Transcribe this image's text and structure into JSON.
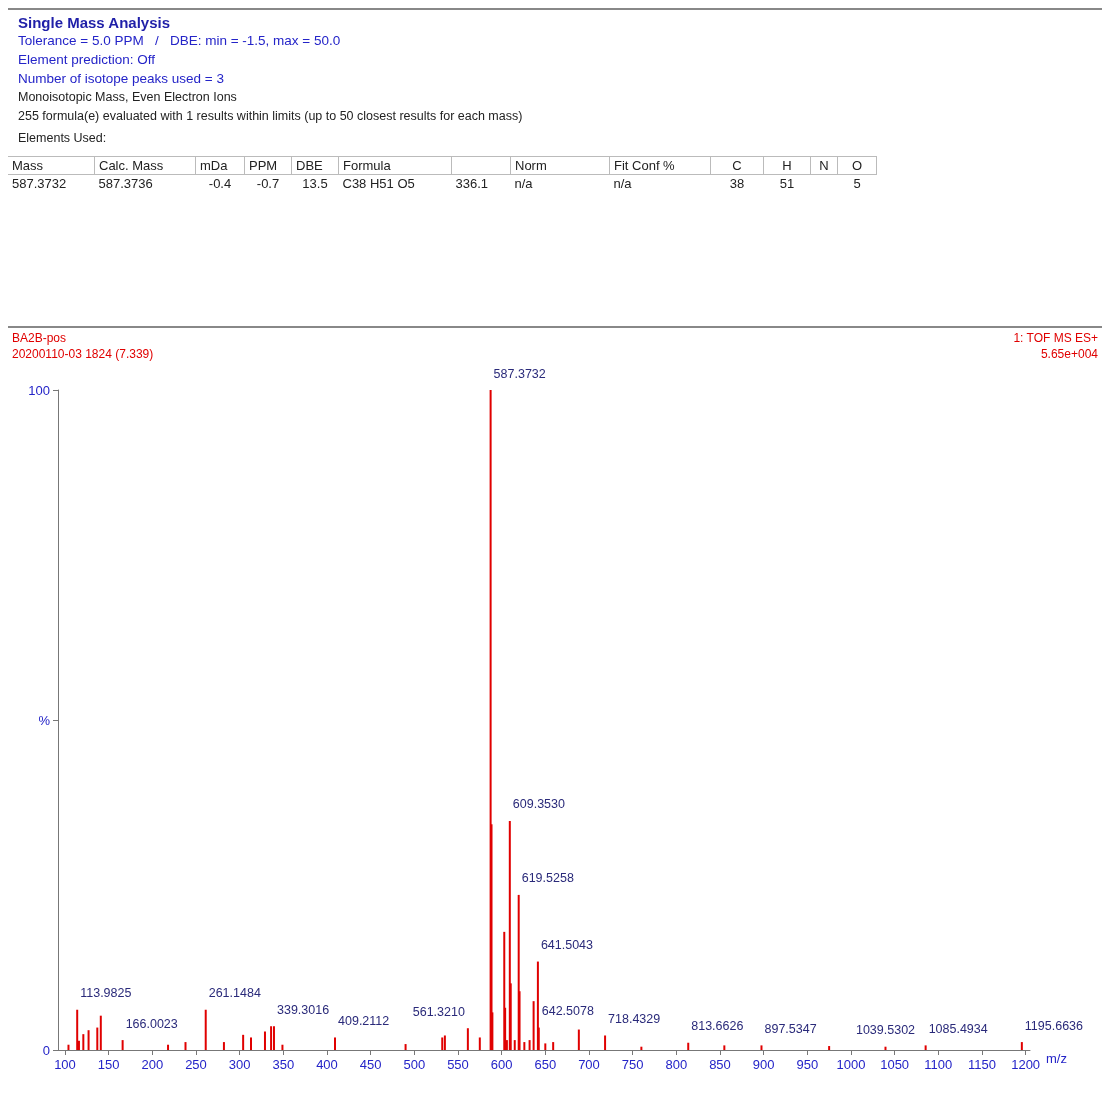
{
  "chart_data": [
    {
      "type": "other",
      "title": "Single Mass Analysis",
      "annotations": [
        "Tolerance = 5.0 PPM   /   DBE: min = -1.5, max = 50.0",
        "Element prediction: Off",
        "Number of isotope peaks used = 3",
        "Monoisotopic Mass, Even Electron Ions",
        "255 formula(e) evaluated with 1 results within limits (up to 50 closest results for each mass)",
        "Elements Used:"
      ],
      "categories": [
        "Mass",
        "Calc. Mass",
        "mDa",
        "PPM",
        "DBE",
        "Formula",
        null,
        "Norm",
        "Fit Conf %",
        "C",
        "H",
        "N",
        "O"
      ],
      "cell_labels": [
        [
          "587.3732",
          "587.3736",
          "-0.4",
          "-0.7",
          "13.5",
          "C38  H51  O5",
          "336.1",
          "n/a",
          "n/a",
          "38",
          "51",
          null,
          "5"
        ]
      ]
    },
    {
      "type": "bar",
      "xlabel": "m/z",
      "x": [
        104,
        113.9825,
        116,
        121,
        127,
        137,
        141,
        166.0023,
        218,
        238,
        261.1484,
        282,
        304,
        313,
        329,
        336,
        339.3016,
        349,
        409.2112,
        490,
        532,
        535,
        561.321,
        575,
        587.3732,
        588.4,
        589.4,
        603,
        604,
        606,
        609.353,
        610.4,
        615,
        619.5258,
        620.5,
        626,
        632,
        636.6,
        641.5043,
        642.5078,
        650,
        659,
        688.4,
        718.4329,
        760,
        813.6626,
        855,
        897.5347,
        975,
        1039.5302,
        1085.4934,
        1195.6636
      ],
      "values": [
        0.8,
        6.1,
        1.4,
        2.4,
        3.0,
        3.4,
        5.2,
        1.5,
        0.8,
        1.2,
        6.1,
        1.2,
        2.3,
        1.9,
        2.8,
        3.6,
        3.6,
        0.8,
        1.9,
        0.9,
        1.9,
        2.2,
        3.3,
        1.9,
        100,
        34.2,
        5.7,
        17.9,
        6.4,
        1.5,
        34.7,
        10.1,
        1.5,
        23.5,
        8.9,
        1.2,
        1.5,
        7.4,
        13.4,
        3.4,
        1.0,
        1.2,
        3.1,
        2.2,
        0.5,
        1.1,
        0.7,
        0.7,
        0.6,
        0.5,
        0.7,
        1.2
      ],
      "color": "#e00000",
      "xlim": [
        92,
        1205
      ],
      "xticks": [
        100,
        150,
        200,
        250,
        300,
        350,
        400,
        450,
        500,
        550,
        600,
        650,
        700,
        750,
        800,
        850,
        900,
        950,
        1000,
        1050,
        1100,
        1150,
        1200
      ],
      "ylim": [
        0,
        100
      ],
      "yticks": [
        0,
        {
          "value": 50,
          "label": "%"
        },
        100
      ],
      "grid": false,
      "annotations": [
        "BA2B-pos",
        "20200110-03 1824 (7.339)",
        "1: TOF MS ES+",
        "5.65e+004",
        {
          "text": "587.3732",
          "x": 587.3732,
          "y": 100
        },
        {
          "text": "609.3530",
          "x": 609.353,
          "y": 34.7
        },
        {
          "text": "619.5258",
          "x": 619.5258,
          "y": 23.5
        },
        {
          "text": "641.5043",
          "x": 641.5043,
          "y": 13.4
        },
        {
          "text": "642.5078",
          "x": 642.5078,
          "y": 3.4
        },
        {
          "text": "561.3210",
          "x": 561.321,
          "y": 3.3
        },
        {
          "text": "113.9825",
          "x": 113.9825,
          "y": 6.1
        },
        {
          "text": "166.0023",
          "x": 166.0023,
          "y": 1.5
        },
        {
          "text": "261.1484",
          "x": 261.1484,
          "y": 6.1
        },
        {
          "text": "339.3016",
          "x": 339.3016,
          "y": 3.6
        },
        {
          "text": "409.2112",
          "x": 409.2112,
          "y": 1.9
        },
        {
          "text": "718.4329",
          "x": 718.4329,
          "y": 2.2
        },
        {
          "text": "813.6626",
          "x": 813.6626,
          "y": 1.1
        },
        {
          "text": "897.5347",
          "x": 897.5347,
          "y": 0.7
        },
        {
          "text": "1039.5302",
          "x": 1039.5302,
          "y": 0.5
        },
        {
          "text": "1085.4934",
          "x": 1085.4934,
          "y": 0.7
        },
        {
          "text": "1195.6636",
          "x": 1195.6636,
          "y": 1.2
        }
      ]
    }
  ]
}
